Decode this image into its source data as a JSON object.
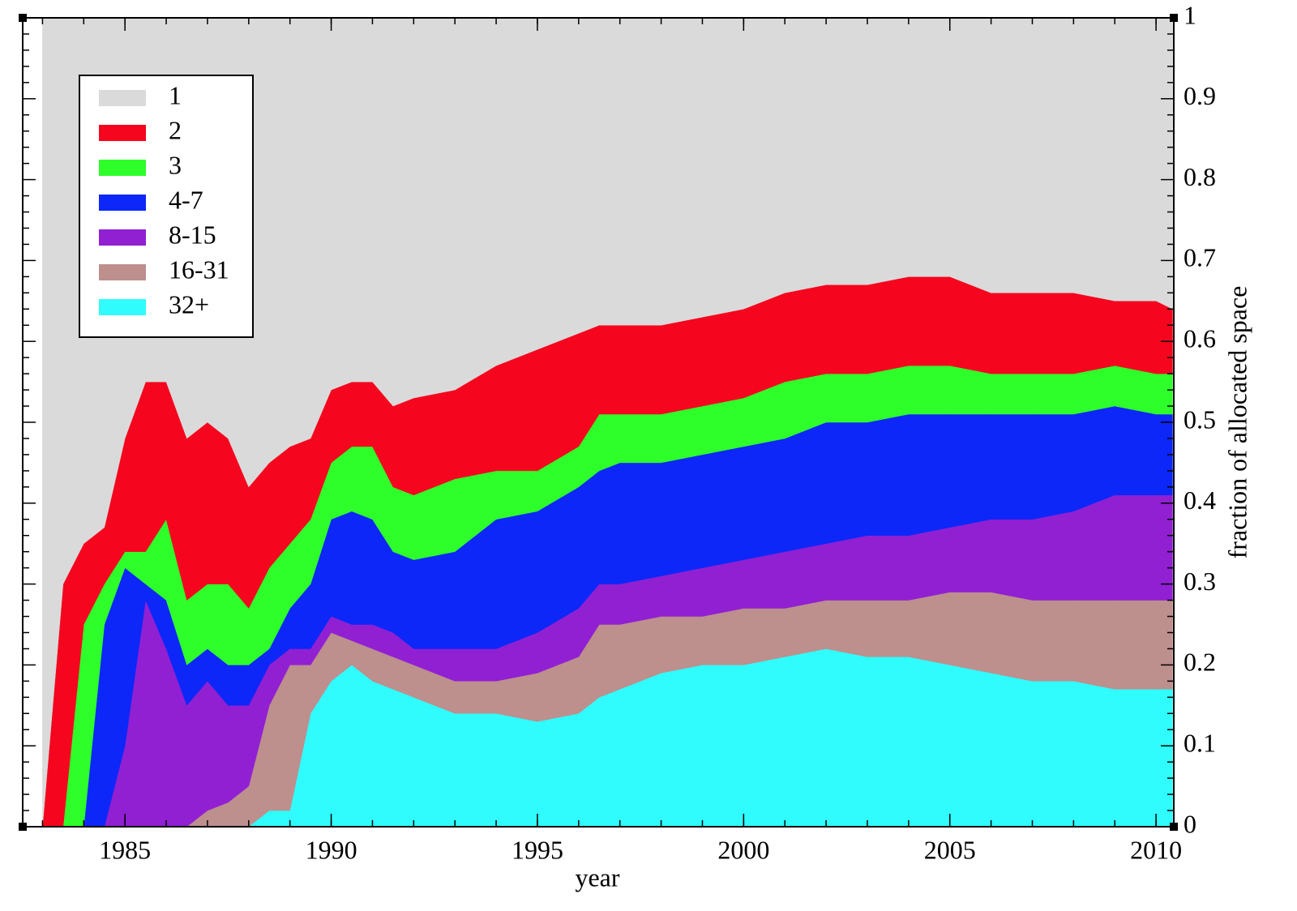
{
  "chart_data": {
    "type": "stacked_area",
    "xlabel": "year",
    "ylabel": "fraction of allocated space",
    "x": [
      1983,
      1983.5,
      1984,
      1984.5,
      1985,
      1985.5,
      1986,
      1986.5,
      1987,
      1987.5,
      1988,
      1988.5,
      1989,
      1989.5,
      1990,
      1990.5,
      1991,
      1991.5,
      1992,
      1993,
      1994,
      1995,
      1996,
      1996.5,
      1997,
      1998,
      1999,
      2000,
      2001,
      2002,
      2003,
      2004,
      2005,
      2006,
      2007,
      2008,
      2009,
      2010,
      2010.4
    ],
    "series": [
      {
        "name": "1",
        "color": "#dadada",
        "values": [
          1,
          0.7,
          0.65,
          0.63,
          0.52,
          0.45,
          0.45,
          0.52,
          0.5,
          0.52,
          0.58,
          0.55,
          0.53,
          0.52,
          0.46,
          0.45,
          0.45,
          0.48,
          0.47,
          0.46,
          0.43,
          0.41,
          0.39,
          0.38,
          0.38,
          0.38,
          0.37,
          0.36,
          0.34,
          0.33,
          0.33,
          0.32,
          0.32,
          0.34,
          0.34,
          0.34,
          0.35,
          0.35,
          0.36
        ]
      },
      {
        "name": "2",
        "color": "#f5061e",
        "values": [
          0,
          0.3,
          0.1,
          0.07,
          0.14,
          0.21,
          0.17,
          0.2,
          0.2,
          0.18,
          0.15,
          0.13,
          0.12,
          0.1,
          0.09,
          0.08,
          0.08,
          0.1,
          0.12,
          0.11,
          0.13,
          0.15,
          0.14,
          0.11,
          0.11,
          0.11,
          0.11,
          0.11,
          0.11,
          0.11,
          0.11,
          0.11,
          0.11,
          0.1,
          0.1,
          0.1,
          0.08,
          0.09,
          0.08
        ]
      },
      {
        "name": "3",
        "color": "#2eff2b",
        "values": [
          0,
          0,
          0.25,
          0.05,
          0.02,
          0.04,
          0.1,
          0.08,
          0.08,
          0.1,
          0.07,
          0.1,
          0.08,
          0.08,
          0.07,
          0.08,
          0.09,
          0.08,
          0.08,
          0.09,
          0.06,
          0.05,
          0.05,
          0.07,
          0.06,
          0.06,
          0.06,
          0.06,
          0.07,
          0.06,
          0.06,
          0.06,
          0.06,
          0.05,
          0.05,
          0.05,
          0.05,
          0.05,
          0.05
        ]
      },
      {
        "name": "4-7",
        "color": "#0c27f8",
        "values": [
          0,
          0,
          0,
          0.25,
          0.22,
          0.02,
          0.06,
          0.05,
          0.04,
          0.05,
          0.05,
          0.02,
          0.05,
          0.08,
          0.12,
          0.14,
          0.13,
          0.1,
          0.11,
          0.12,
          0.16,
          0.15,
          0.15,
          0.14,
          0.15,
          0.14,
          0.14,
          0.14,
          0.14,
          0.15,
          0.14,
          0.15,
          0.14,
          0.13,
          0.13,
          0.12,
          0.11,
          0.1,
          0.1
        ]
      },
      {
        "name": "8-15",
        "color": "#9120d2",
        "values": [
          0,
          0,
          0,
          0,
          0.1,
          0.28,
          0.22,
          0.15,
          0.16,
          0.12,
          0.1,
          0.05,
          0.02,
          0.02,
          0.02,
          0.02,
          0.03,
          0.03,
          0.02,
          0.04,
          0.04,
          0.05,
          0.06,
          0.05,
          0.05,
          0.05,
          0.06,
          0.06,
          0.07,
          0.07,
          0.08,
          0.08,
          0.08,
          0.09,
          0.1,
          0.11,
          0.13,
          0.13,
          0.13
        ]
      },
      {
        "name": "16-31",
        "color": "#bd8f8d",
        "values": [
          0,
          0,
          0,
          0,
          0,
          0,
          0,
          0,
          0.02,
          0.03,
          0.05,
          0.13,
          0.18,
          0.06,
          0.06,
          0.03,
          0.04,
          0.04,
          0.04,
          0.04,
          0.04,
          0.06,
          0.07,
          0.09,
          0.08,
          0.07,
          0.06,
          0.07,
          0.06,
          0.06,
          0.07,
          0.07,
          0.09,
          0.1,
          0.1,
          0.1,
          0.11,
          0.11,
          0.11
        ]
      },
      {
        "name": "32+",
        "color": "#30fcfe",
        "values": [
          0,
          0,
          0,
          0,
          0,
          0,
          0,
          0,
          0,
          0,
          0,
          0.02,
          0.02,
          0.14,
          0.18,
          0.2,
          0.18,
          0.17,
          0.16,
          0.14,
          0.14,
          0.13,
          0.14,
          0.16,
          0.17,
          0.19,
          0.2,
          0.2,
          0.21,
          0.22,
          0.21,
          0.21,
          0.2,
          0.19,
          0.18,
          0.18,
          0.17,
          0.17,
          0.17
        ]
      }
    ],
    "xlim": [
      1982.52,
      2010.43
    ],
    "ylim": [
      0,
      1
    ],
    "xticks": [
      1985,
      1990,
      1995,
      2000,
      2005,
      2010
    ],
    "yticks": [
      0,
      0.1,
      0.2,
      0.3,
      0.4,
      0.5,
      0.6,
      0.7,
      0.8,
      0.9,
      1
    ],
    "y_axis_side": "right",
    "grid": false,
    "legend": "upper left"
  }
}
